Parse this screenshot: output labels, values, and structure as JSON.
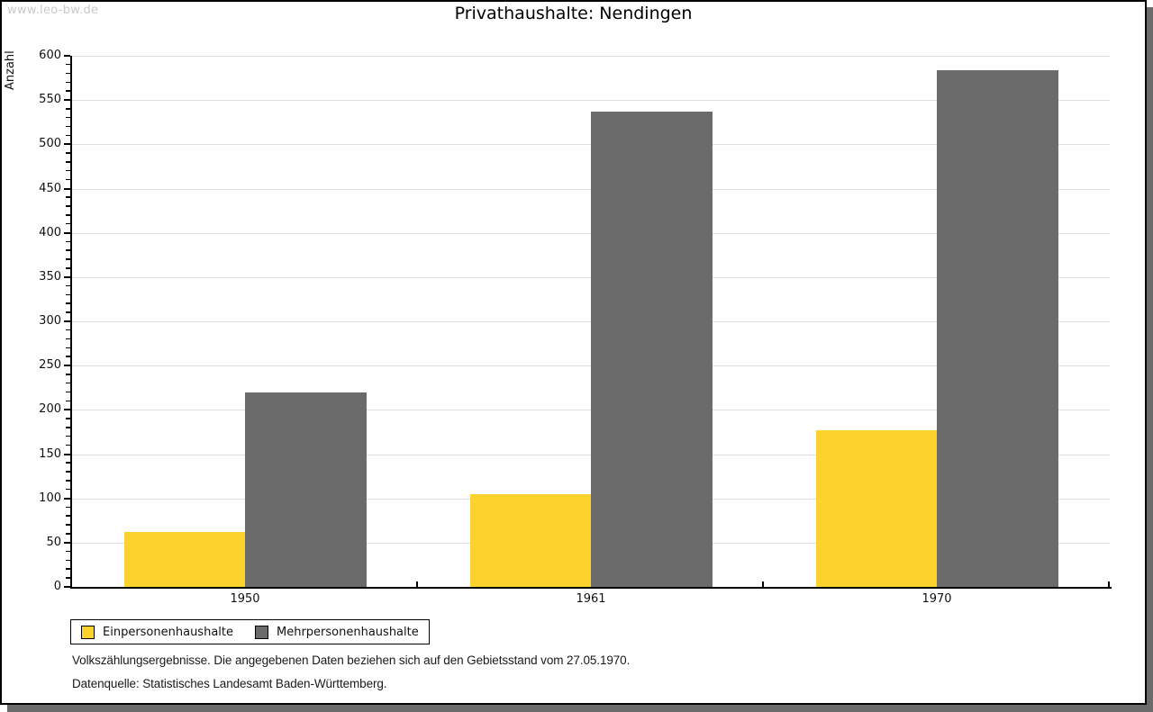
{
  "watermark": "www.leo-bw.de",
  "chart_data": {
    "type": "bar",
    "title": "Privathaushalte: Nendingen",
    "categories": [
      "1950",
      "1961",
      "1970"
    ],
    "series": [
      {
        "name": "Einpersonenhaushalte",
        "color": "#fcd32c",
        "values": [
          62,
          105,
          177
        ]
      },
      {
        "name": "Mehrpersonenhaushalte",
        "color": "#6b6b6b",
        "values": [
          220,
          537,
          584
        ]
      }
    ],
    "ylabel": "Anzahl",
    "xlabel": "",
    "ylim": [
      0,
      600
    ],
    "ytick_step": 50,
    "y_minor_step": 10,
    "grid": true,
    "legend_position": "bottom-left"
  },
  "footer": {
    "note": "Volkszählungsergebnisse. Die angegebenen Daten beziehen sich auf den Gebietsstand vom 27.05.1970.",
    "source": "Datenquelle: Statistisches Landesamt Baden-Württemberg."
  },
  "colors": {
    "shadow": "#6b6b6b",
    "gridline": "#e0e0e0",
    "axis": "#000000",
    "watermark_text": "#c9c9c9"
  }
}
